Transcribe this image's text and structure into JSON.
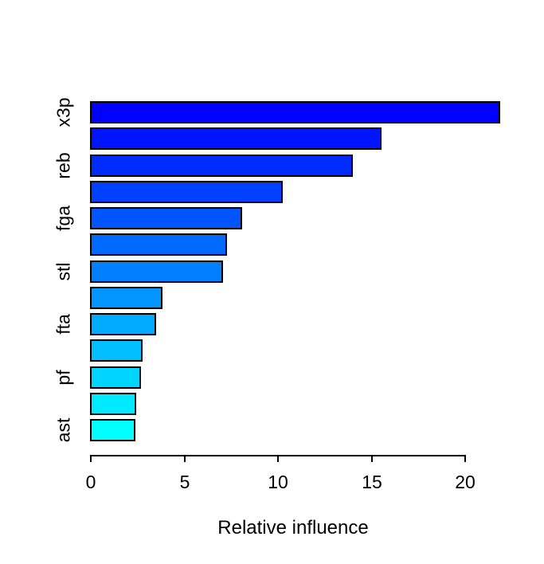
{
  "chart_data": {
    "type": "bar",
    "orientation": "horizontal",
    "title": "",
    "xlabel": "Relative influence",
    "ylabel": "",
    "xlim": [
      0,
      21.82
    ],
    "x_ticks": [
      "0",
      "5",
      "10",
      "15",
      "20"
    ],
    "x_tick_values": [
      0,
      5,
      10,
      15,
      20
    ],
    "grid": false,
    "legend": "none",
    "bar_border_color": "#000000",
    "axis_color": "#000000",
    "background_color": "#ffffff",
    "bars": [
      {
        "label": "x3p",
        "value": 21.82,
        "color": "#0000FF"
      },
      {
        "label": "",
        "value": 15.48,
        "color": "#0015FF"
      },
      {
        "label": "reb",
        "value": 13.95,
        "color": "#002BFF"
      },
      {
        "label": "",
        "value": 10.2,
        "color": "#0040FF"
      },
      {
        "label": "fga",
        "value": 8.03,
        "color": "#0055FF"
      },
      {
        "label": "",
        "value": 7.25,
        "color": "#006AFF"
      },
      {
        "label": "stl",
        "value": 7.01,
        "color": "#0080FF"
      },
      {
        "label": "",
        "value": 3.78,
        "color": "#0095FF"
      },
      {
        "label": "fta",
        "value": 3.45,
        "color": "#00AAFF"
      },
      {
        "label": "",
        "value": 2.73,
        "color": "#00BFFF"
      },
      {
        "label": "pf",
        "value": 2.65,
        "color": "#00D5FF"
      },
      {
        "label": "",
        "value": 2.4,
        "color": "#00EAFF"
      },
      {
        "label": "ast",
        "value": 2.32,
        "color": "#00FFFF"
      }
    ]
  }
}
